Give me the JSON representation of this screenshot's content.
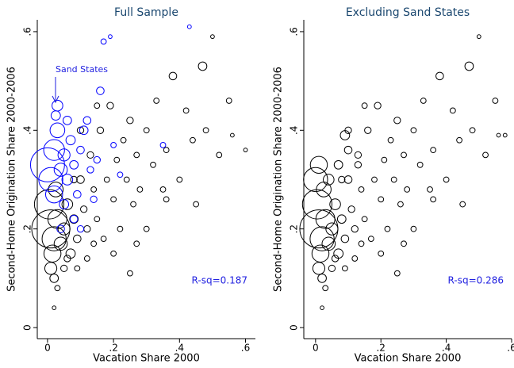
{
  "chart_data": [
    {
      "type": "scatter",
      "title": "Full Sample",
      "x_label": "Vacation Share 2000",
      "y_label": "Second-Home Origination Share 2000-2006",
      "xlim": [
        -0.031,
        0.63
      ],
      "ylim": [
        -0.0225,
        0.624
      ],
      "xticks": [
        0,
        {
          "value": 0.2,
          "label": ".2"
        },
        {
          "value": 0.4,
          "label": ".4"
        },
        {
          "value": 0.6,
          "label": ".6"
        }
      ],
      "yticks": [
        0,
        {
          "value": 0.2,
          "label": ".2"
        },
        {
          "value": 0.4,
          "label": ".4"
        },
        {
          "value": 0.6,
          "label": ".6"
        }
      ],
      "annotations": [
        "Sand States",
        "R-sq=0.187"
      ],
      "series": [
        {
          "color": "#000000",
          "x": [
            0.01,
            0.005,
            0.02,
            0.015,
            0.03,
            0.01,
            0.02,
            0.025,
            0.04,
            0.05,
            0.06,
            0.07,
            0.08,
            0.09,
            0.1,
            0.11,
            0.12,
            0.13,
            0.14,
            0.15,
            0.16,
            0.17,
            0.18,
            0.19,
            0.2,
            0.21,
            0.22,
            0.23,
            0.24,
            0.25,
            0.26,
            0.27,
            0.28,
            0.3,
            0.32,
            0.33,
            0.35,
            0.36,
            0.38,
            0.4,
            0.42,
            0.44,
            0.45,
            0.47,
            0.48,
            0.5,
            0.52,
            0.55,
            0.56,
            0.6,
            0.05,
            0.03,
            0.02,
            0.06,
            0.09,
            0.12,
            0.08,
            0.14,
            0.2,
            0.25,
            0.3,
            0.1,
            0.15,
            0.36,
            0.27
          ],
          "y": [
            0.2,
            0.25,
            0.18,
            0.15,
            0.22,
            0.12,
            0.1,
            0.28,
            0.17,
            0.2,
            0.25,
            0.15,
            0.22,
            0.18,
            0.3,
            0.24,
            0.2,
            0.35,
            0.28,
            0.22,
            0.4,
            0.18,
            0.3,
            0.45,
            0.26,
            0.34,
            0.2,
            0.38,
            0.3,
            0.42,
            0.25,
            0.35,
            0.28,
            0.4,
            0.33,
            0.46,
            0.28,
            0.36,
            0.51,
            0.3,
            0.44,
            0.38,
            0.25,
            0.53,
            0.4,
            0.59,
            0.35,
            0.46,
            0.39,
            0.36,
            0.12,
            0.08,
            0.04,
            0.14,
            0.12,
            0.14,
            0.3,
            0.17,
            0.15,
            0.11,
            0.2,
            0.4,
            0.45,
            0.26,
            0.17
          ],
          "size": [
            100,
            60,
            40,
            20,
            25,
            10,
            5,
            15,
            12,
            10,
            8,
            6,
            5,
            4,
            4,
            3,
            3,
            3,
            2,
            2,
            3,
            2,
            2,
            3,
            2,
            2,
            2,
            2,
            2,
            3,
            2,
            2,
            2,
            2,
            2,
            2,
            2,
            2,
            4,
            2,
            2,
            2,
            2,
            5,
            2,
            1,
            2,
            2,
            1,
            1,
            3,
            2,
            1,
            3,
            2,
            2,
            3,
            2,
            2,
            2,
            2,
            3,
            2,
            2,
            2
          ]
        },
        {
          "color": "#0000ff",
          "x": [
            0,
            0.01,
            0.02,
            0.03,
            0.02,
            0.04,
            0.05,
            0.06,
            0.07,
            0.08,
            0.09,
            0.1,
            0.11,
            0.12,
            0.13,
            0.15,
            0.16,
            0.17,
            0.19,
            0.2,
            0.22,
            0.35,
            0.43,
            0.03,
            0.05,
            0.08,
            0.04,
            0.06,
            0.14,
            0.1,
            0.025
          ],
          "y": [
            0.33,
            0.3,
            0.36,
            0.4,
            0.27,
            0.32,
            0.35,
            0.3,
            0.38,
            0.33,
            0.27,
            0.36,
            0.4,
            0.42,
            0.32,
            0.34,
            0.48,
            0.58,
            0.59,
            0.37,
            0.31,
            0.37,
            0.61,
            0.45,
            0.25,
            0.22,
            0.2,
            0.42,
            0.26,
            0.2,
            0.43
          ],
          "size": [
            80,
            40,
            30,
            15,
            20,
            12,
            10,
            8,
            6,
            5,
            4,
            4,
            5,
            4,
            3,
            3,
            4,
            2,
            1,
            2,
            2,
            2,
            1,
            8,
            6,
            4,
            4,
            5,
            3,
            3,
            6
          ]
        }
      ]
    },
    {
      "type": "scatter",
      "title": "Excluding Sand States",
      "x_label": "Vacation Share 2000",
      "y_label": "Second-Home Origination Share 2000-2006",
      "xlim": [
        -0.036,
        0.6
      ],
      "ylim": [
        -0.0225,
        0.624
      ],
      "xticks": [
        0,
        {
          "value": 0.2,
          "label": ".2"
        },
        {
          "value": 0.4,
          "label": ".4"
        },
        {
          "value": 0.6,
          "label": ".6"
        }
      ],
      "yticks": [
        0,
        {
          "value": 0.2,
          "label": ".2"
        },
        {
          "value": 0.4,
          "label": ".4"
        },
        {
          "value": 0.6,
          "label": ".6"
        }
      ],
      "annotations": [
        "R-sq=0.286"
      ],
      "series": [
        {
          "color": "#000000",
          "x": [
            0.01,
            0.005,
            0.02,
            0.015,
            0.03,
            0.01,
            0.02,
            0.025,
            0.04,
            0.05,
            0.06,
            0.07,
            0.08,
            0.09,
            0.1,
            0.11,
            0.12,
            0.13,
            0.14,
            0.15,
            0.16,
            0.17,
            0.18,
            0.19,
            0.2,
            0.21,
            0.22,
            0.23,
            0.24,
            0.25,
            0.26,
            0.27,
            0.28,
            0.3,
            0.32,
            0.33,
            0.35,
            0.36,
            0.38,
            0.4,
            0.42,
            0.44,
            0.45,
            0.47,
            0.48,
            0.5,
            0.52,
            0.55,
            0.56,
            0.58,
            0.05,
            0.03,
            0.02,
            0.06,
            0.09,
            0.12,
            0.08,
            0.14,
            0.2,
            0.25,
            0.3,
            0.1,
            0.15,
            0.36,
            0.27,
            0.0,
            0.01,
            0.04,
            0.07,
            0.09,
            0.13,
            0.1
          ],
          "y": [
            0.2,
            0.25,
            0.18,
            0.15,
            0.22,
            0.12,
            0.1,
            0.28,
            0.17,
            0.2,
            0.25,
            0.15,
            0.22,
            0.18,
            0.3,
            0.24,
            0.2,
            0.35,
            0.28,
            0.22,
            0.4,
            0.18,
            0.3,
            0.45,
            0.26,
            0.34,
            0.2,
            0.38,
            0.3,
            0.42,
            0.25,
            0.35,
            0.28,
            0.4,
            0.33,
            0.46,
            0.28,
            0.36,
            0.51,
            0.3,
            0.44,
            0.38,
            0.25,
            0.53,
            0.4,
            0.59,
            0.35,
            0.46,
            0.39,
            0.39,
            0.12,
            0.08,
            0.04,
            0.14,
            0.12,
            0.14,
            0.3,
            0.17,
            0.15,
            0.11,
            0.2,
            0.4,
            0.45,
            0.26,
            0.17,
            0.3,
            0.33,
            0.3,
            0.33,
            0.39,
            0.33,
            0.36
          ],
          "size": [
            100,
            60,
            40,
            20,
            25,
            10,
            5,
            15,
            12,
            10,
            8,
            6,
            5,
            4,
            4,
            3,
            3,
            3,
            2,
            2,
            3,
            2,
            2,
            3,
            2,
            2,
            2,
            2,
            2,
            3,
            2,
            2,
            2,
            2,
            2,
            2,
            2,
            2,
            4,
            2,
            2,
            2,
            2,
            5,
            2,
            1,
            2,
            2,
            1,
            1,
            3,
            2,
            1,
            3,
            2,
            2,
            3,
            2,
            2,
            2,
            2,
            3,
            2,
            2,
            2,
            40,
            20,
            8,
            5,
            6,
            3,
            4
          ]
        }
      ]
    }
  ]
}
